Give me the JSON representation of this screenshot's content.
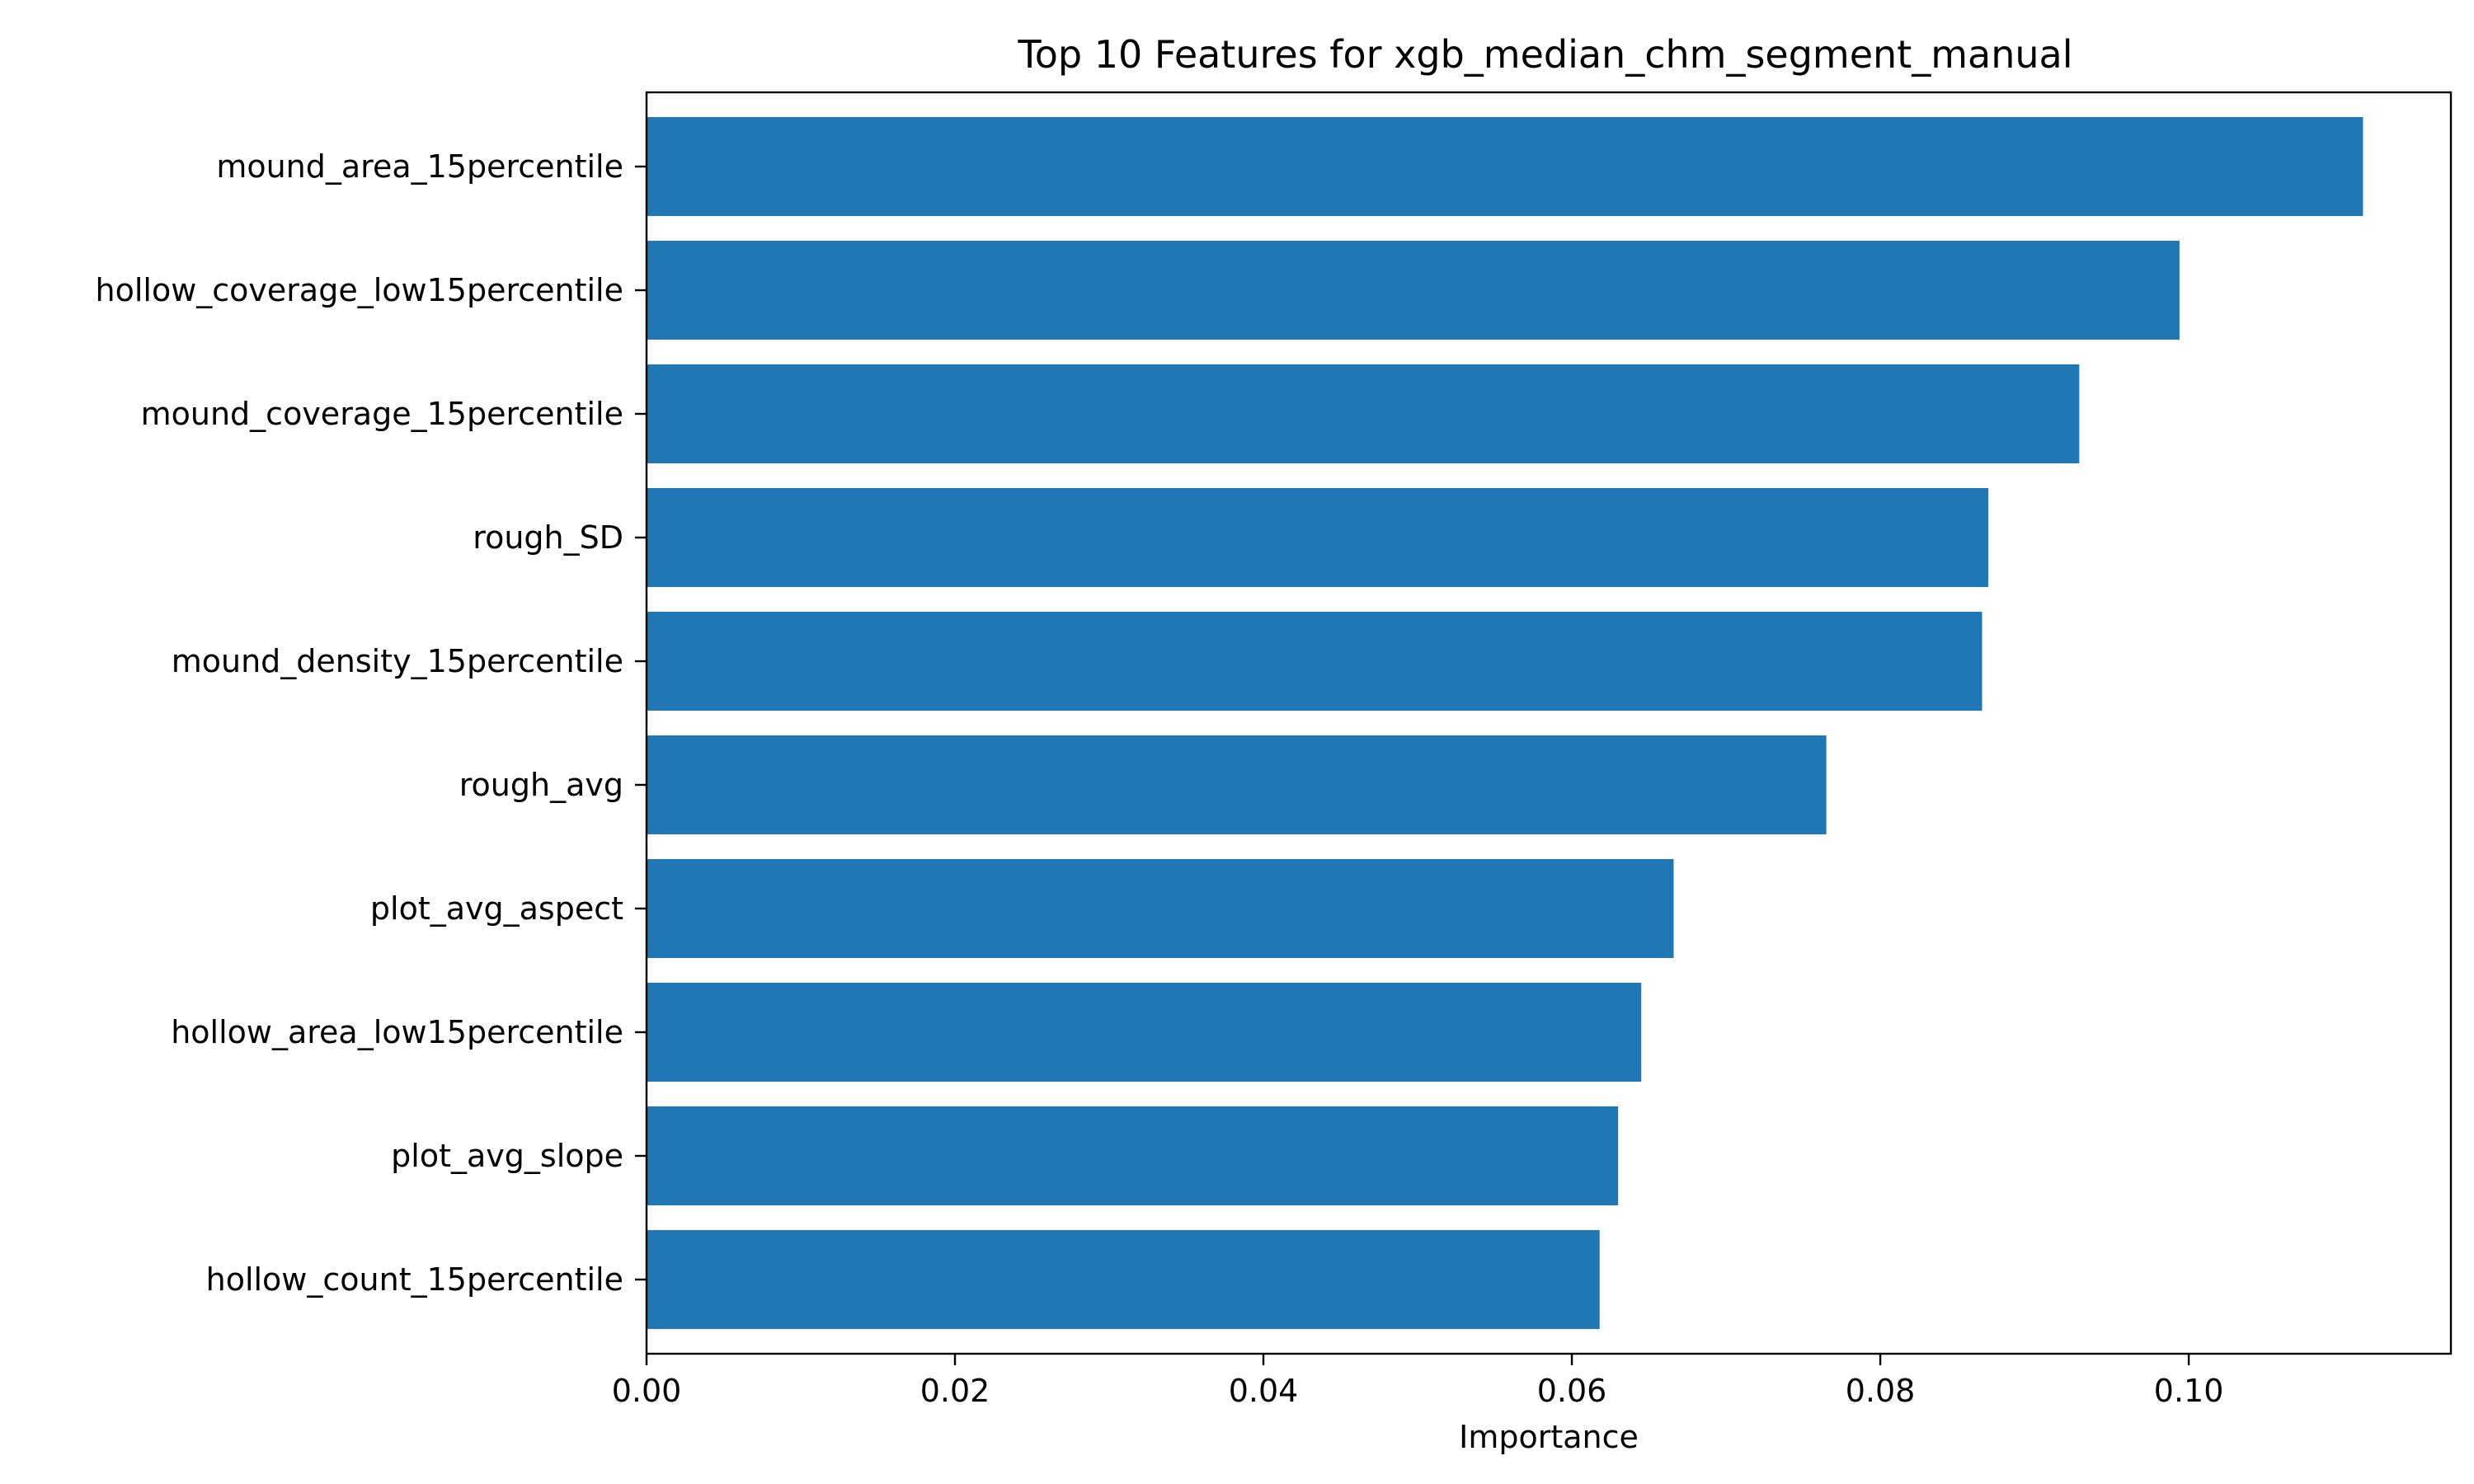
{
  "chart_data": {
    "type": "bar",
    "orientation": "horizontal",
    "title": "Top 10 Features for xgb_median_chm_segment_manual",
    "xlabel": "Importance",
    "ylabel": "",
    "categories": [
      "mound_area_15percentile",
      "hollow_coverage_low15percentile",
      "mound_coverage_15percentile",
      "rough_SD",
      "mound_density_15percentile",
      "rough_avg",
      "plot_avg_aspect",
      "hollow_area_low15percentile",
      "plot_avg_slope",
      "hollow_count_15percentile"
    ],
    "values": [
      0.1113,
      0.0994,
      0.0929,
      0.087,
      0.0866,
      0.0765,
      0.0666,
      0.0645,
      0.063,
      0.0618
    ],
    "xlim": [
      0,
      0.117
    ],
    "xticks": [
      0.0,
      0.02,
      0.04,
      0.06,
      0.08,
      0.1
    ],
    "xtick_labels": [
      "0.00",
      "0.02",
      "0.04",
      "0.06",
      "0.08",
      "0.10"
    ],
    "bar_color": "#1f77b4",
    "grid": false,
    "legend": "none"
  }
}
